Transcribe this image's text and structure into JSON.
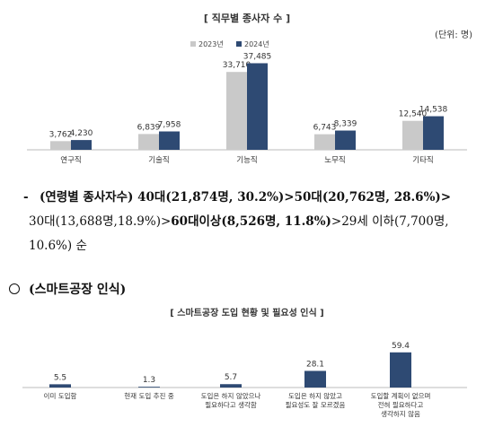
{
  "chart_data": [
    {
      "type": "bar",
      "title": "[ 직무별 종사자 수 ]",
      "unit": "(단위: 명)",
      "categories": [
        "연구직",
        "기술직",
        "기능직",
        "노무직",
        "기타직"
      ],
      "series": [
        {
          "name": "2023년",
          "color": "#c9c9c9",
          "values": [
            3762,
            6839,
            33710,
            6743,
            12540
          ],
          "labels": [
            "3,762",
            "6,839",
            "33,710",
            "6,743",
            "12,540"
          ]
        },
        {
          "name": "2024년",
          "color": "#2e4a73",
          "values": [
            4230,
            7958,
            37485,
            8339,
            14538
          ],
          "labels": [
            "4,230",
            "7,958",
            "37,485",
            "8,339",
            "14,538"
          ]
        }
      ],
      "legend": "top-center",
      "ylim": [
        0,
        40000
      ],
      "grid": false
    },
    {
      "type": "bar",
      "title": "[ 스마트공장 도입 현황 및 필요성 인식 ]",
      "categories": [
        "이미 도입함",
        "현재 도입 추진 중",
        "도입은 하지 않았으나 필요하다고 생각함",
        "도입은 하지 않았고 필요성도 잘 모르겠음",
        "도입할 계획이 없으며 전혀 필요하다고 생각하지 않음"
      ],
      "category_lines": [
        [
          "이미 도입함"
        ],
        [
          "현재 도입 추진 중"
        ],
        [
          "도입은 하지 않았으나",
          "필요하다고 생각함"
        ],
        [
          "도입은 하지 않았고",
          "필요성도 잘 모르겠음"
        ],
        [
          "도입할 계획이 없으며",
          "전혀 필요하다고",
          "생각하지 않음"
        ]
      ],
      "series": [
        {
          "color": "#2e4a73",
          "values": [
            5.5,
            1.3,
            5.7,
            28.1,
            59.4
          ],
          "labels": [
            "5.5",
            "1.3",
            "5.7",
            "28.1",
            "59.4"
          ]
        }
      ],
      "ylim": [
        0,
        65
      ],
      "grid": false
    }
  ],
  "text": {
    "age_dash": "-",
    "age_l1": [
      {
        "t": "(연령별  종사자수)  ",
        "b": true
      },
      {
        "t": "40대(21,874명,  30.2%)>50대(20,762명,  28.6%)>",
        "b": true
      }
    ],
    "age_l2": [
      {
        "t": "30대(13,688명,18.9%)>",
        "b": false
      },
      {
        "t": "60대이상(8,526명,  11.8%)",
        "b": true
      },
      {
        "t": ">29세  이하(7,700명,",
        "b": false
      }
    ],
    "age_l3": [
      {
        "t": "10.6%)  순",
        "b": false
      }
    ],
    "smart_heading": "(스마트공장  인식)"
  }
}
